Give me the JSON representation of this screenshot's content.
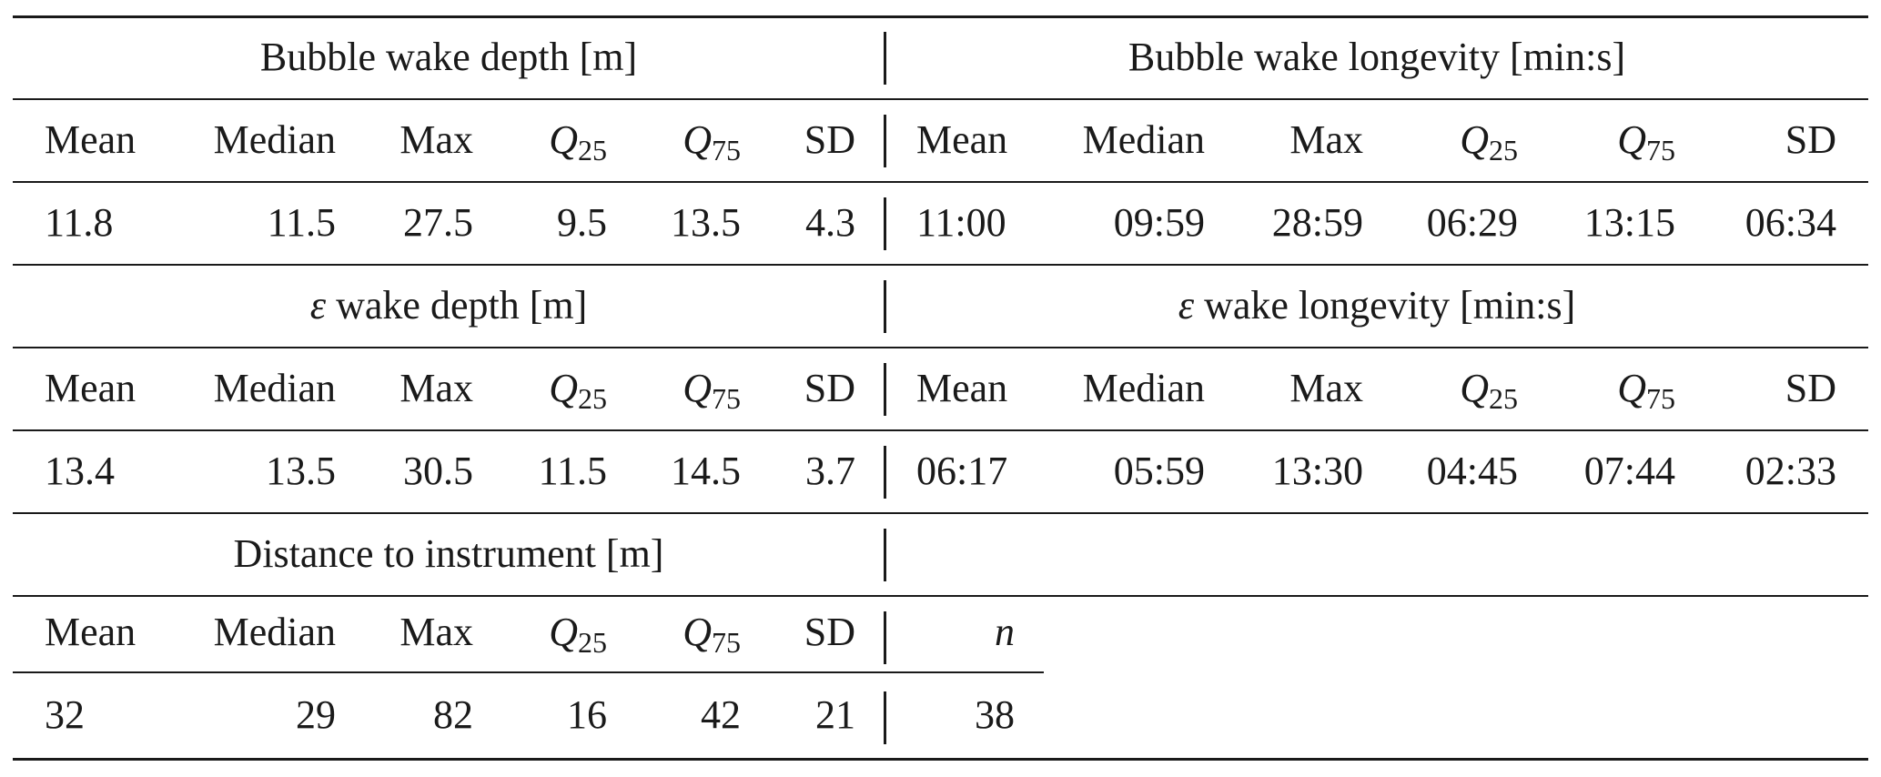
{
  "sections": [
    {
      "left_title": "Bubble wake depth [m]",
      "right_title": "Bubble wake longevity [min:s]",
      "left_headers": [
        "Mean",
        "Median",
        "Max",
        "Q25",
        "Q75",
        "SD"
      ],
      "right_headers": [
        "Mean",
        "Median",
        "Max",
        "Q25",
        "Q75",
        "SD"
      ],
      "left_values": [
        "11.8",
        "11.5",
        "27.5",
        "9.5",
        "13.5",
        "4.3"
      ],
      "right_values": [
        "11:00",
        "09:59",
        "28:59",
        "06:29",
        "13:15",
        "06:34"
      ]
    },
    {
      "left_title": "ε wake depth [m]",
      "right_title": "ε wake longevity [min:s]",
      "left_headers": [
        "Mean",
        "Median",
        "Max",
        "Q25",
        "Q75",
        "SD"
      ],
      "right_headers": [
        "Mean",
        "Median",
        "Max",
        "Q25",
        "Q75",
        "SD"
      ],
      "left_values": [
        "13.4",
        "13.5",
        "30.5",
        "11.5",
        "14.5",
        "3.7"
      ],
      "right_values": [
        "06:17",
        "05:59",
        "13:30",
        "04:45",
        "07:44",
        "02:33"
      ]
    },
    {
      "left_title": "Distance to instrument [m]",
      "left_headers": [
        "Mean",
        "Median",
        "Max",
        "Q25",
        "Q75",
        "SD"
      ],
      "right_headers": [
        "n"
      ],
      "left_values": [
        "32",
        "29",
        "82",
        "16",
        "42",
        "21"
      ],
      "right_values": [
        "38"
      ]
    }
  ],
  "symbols": {
    "epsilon": "ε",
    "quartile_letter": "Q",
    "q25_sub": "25",
    "q75_sub": "75"
  }
}
